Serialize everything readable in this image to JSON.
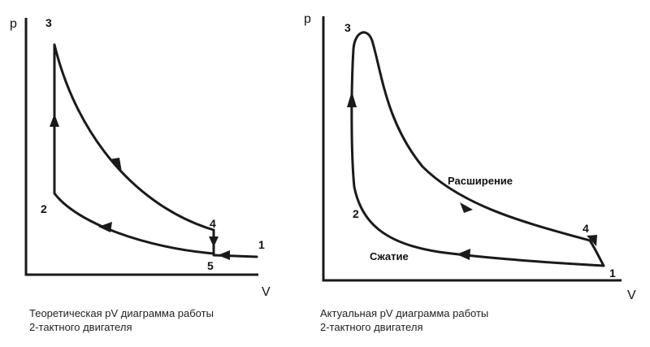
{
  "left_diagram": {
    "axis_p": "p",
    "axis_v": "V",
    "points": [
      "1",
      "2",
      "3",
      "4",
      "5"
    ],
    "caption_line1": "Теоретическая pV диаграмма работы",
    "caption_line2": "2-тактного двигателя"
  },
  "right_diagram": {
    "axis_p": "p",
    "axis_v": "V",
    "points": [
      "1",
      "2",
      "3",
      "4"
    ],
    "label_expansion": "Расширение",
    "label_compression": "Сжатие",
    "caption_line1": "Актуальная pV диаграмма работы",
    "caption_line2": "2-тактного двигателя"
  }
}
